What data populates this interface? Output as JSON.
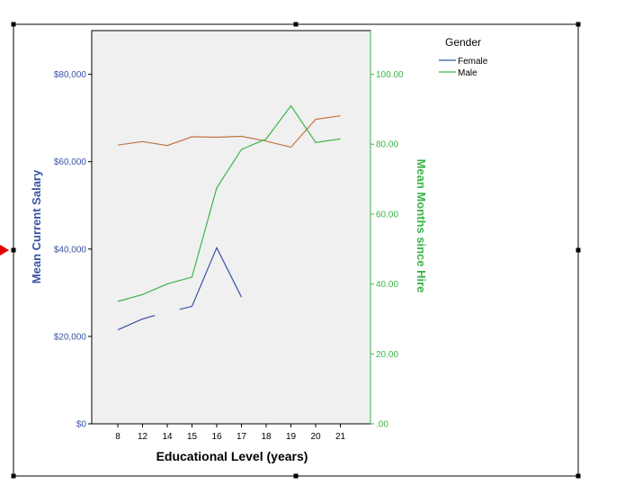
{
  "chart_data": {
    "type": "line",
    "xlabel": "Educational Level (years)",
    "ylabel": "Mean Current Salary",
    "y2label": "Mean Months since Hire",
    "categories": [
      "8",
      "12",
      "14",
      "15",
      "16",
      "17",
      "18",
      "19",
      "20",
      "21"
    ],
    "y_ticks": [
      "$0",
      "$20,000",
      "$40,000",
      "$60,000",
      "$80,000"
    ],
    "y2_ticks": [
      ".00",
      "20.00",
      "40.00",
      "60.00",
      "80.00",
      "100.00"
    ],
    "ylim": [
      0,
      90000
    ],
    "y2lim": [
      0,
      112.5
    ],
    "legend": {
      "title": "Gender",
      "entries": [
        {
          "name": "Female",
          "color": "#3a53a4"
        },
        {
          "name": "Male",
          "color": "#3bb54a"
        }
      ],
      "placement": "top-right"
    },
    "series": [
      {
        "name": "Female",
        "axis": "left",
        "color": "#3a53a4",
        "segments": [
          [
            [
              8,
              21500
            ],
            [
              12,
              24000
            ],
            [
              13,
              24800
            ]
          ],
          [
            [
              14.5,
              26200
            ],
            [
              15,
              26900
            ],
            [
              16,
              40300
            ],
            [
              17,
              29000
            ]
          ]
        ]
      },
      {
        "axis": "left",
        "color": "#c07546",
        "points": [
          [
            8,
            63800
          ],
          [
            12,
            64600
          ],
          [
            14,
            63700
          ],
          [
            15,
            65700
          ],
          [
            16,
            65600
          ],
          [
            17,
            65800
          ],
          [
            18,
            64700
          ],
          [
            19,
            63300
          ],
          [
            20,
            69700
          ],
          [
            21,
            70500
          ]
        ]
      },
      {
        "name": "Male",
        "axis": "right",
        "color": "#3bb54a",
        "points": [
          [
            8,
            35.0
          ],
          [
            12,
            37.0
          ],
          [
            14,
            40.0
          ],
          [
            15,
            42.0
          ],
          [
            16,
            67.5
          ],
          [
            17,
            78.5
          ],
          [
            18,
            81.5
          ],
          [
            19,
            91.0
          ],
          [
            20,
            80.5
          ],
          [
            21,
            81.5
          ]
        ]
      }
    ],
    "grid": false
  }
}
